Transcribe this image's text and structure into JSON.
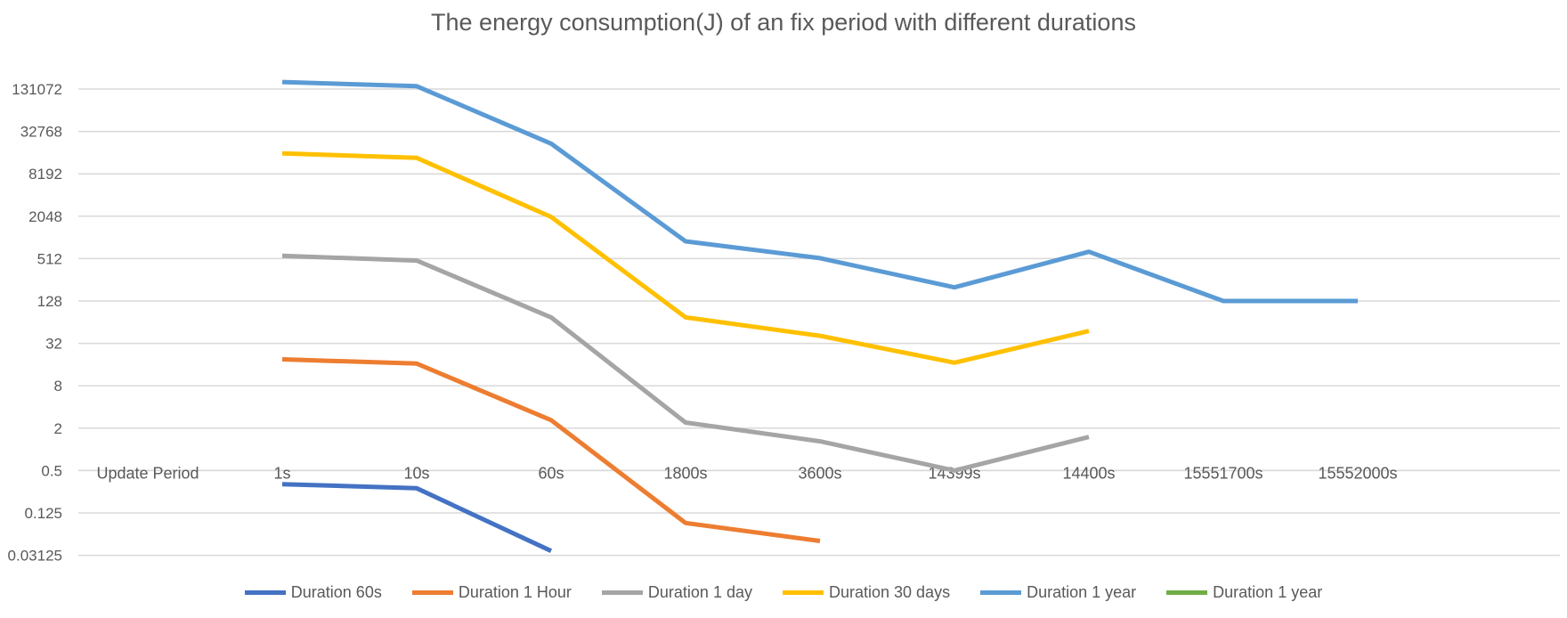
{
  "chart_data": {
    "type": "line",
    "title": "The energy consumption(J) of an fix period with different durations",
    "xlabel": "",
    "ylabel": "",
    "y_scale": "log2",
    "ylim": [
      0.03125,
      262144
    ],
    "y_ticks": [
      "131072",
      "32768",
      "8192",
      "2048",
      "512",
      "128",
      "32",
      "8",
      "2",
      "0.5",
      "0.125",
      "0.03125"
    ],
    "category_axis_crosses_at": 0.5,
    "categories": [
      "Update Period",
      "1s",
      "10s",
      "60s",
      "1800s",
      "3600s",
      "14399s",
      "14400s",
      "15551700s",
      "15552000s"
    ],
    "grid": true,
    "legend_position": "bottom",
    "series": [
      {
        "name": "Duration 60s",
        "color": "#4472c4",
        "values": [
          null,
          0.32,
          0.28,
          0.036,
          null,
          null,
          null,
          null,
          null,
          null
        ]
      },
      {
        "name": "Duration 1 Hour",
        "color": "#ed7d31",
        "values": [
          null,
          19,
          16.5,
          2.6,
          0.09,
          0.05,
          null,
          null,
          null,
          null
        ]
      },
      {
        "name": "Duration 1 day",
        "color": "#a5a5a5",
        "values": [
          null,
          560,
          480,
          75,
          2.4,
          1.3,
          0.5,
          1.5,
          null,
          null
        ]
      },
      {
        "name": "Duration 30 days",
        "color": "#ffc000",
        "values": [
          null,
          16000,
          13800,
          2000,
          75,
          41,
          17,
          48,
          null,
          null
        ]
      },
      {
        "name": "Duration 1 year",
        "color": "#5b9bd5",
        "values": [
          null,
          165000,
          144000,
          22000,
          900,
          520,
          200,
          640,
          128,
          128
        ]
      },
      {
        "name": "Duration 1 year",
        "color": "#70ad47",
        "values": [
          null,
          null,
          null,
          null,
          null,
          null,
          null,
          null,
          null,
          null
        ]
      }
    ]
  }
}
